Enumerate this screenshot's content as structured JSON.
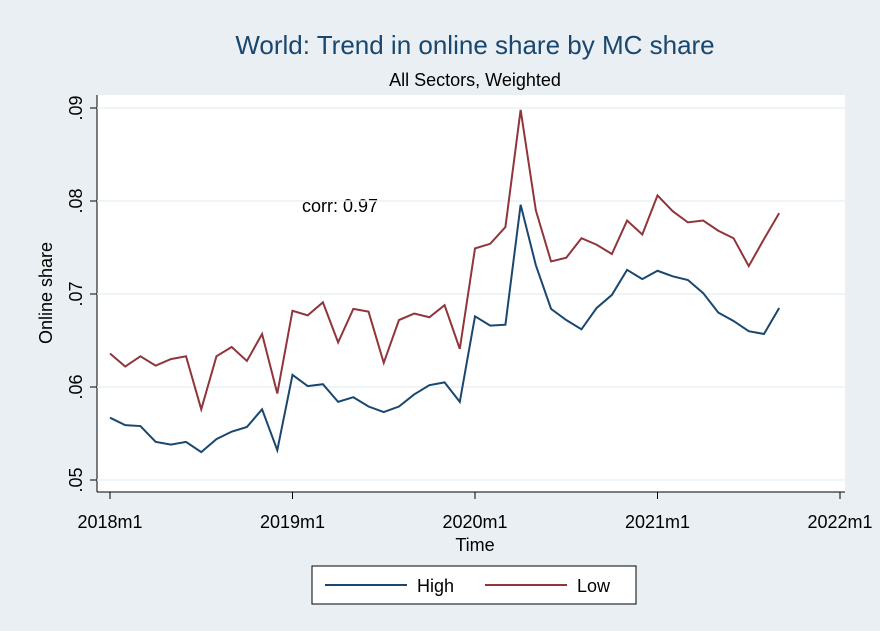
{
  "chart_data": {
    "type": "line",
    "title": "World: Trend in online share by MC share",
    "subtitle": "All Sectors, Weighted",
    "x_label": "Time",
    "y_label": "Online share",
    "annotation": "corr: 0.97",
    "x": [
      696,
      697,
      698,
      699,
      700,
      701,
      702,
      703,
      704,
      705,
      706,
      707,
      708,
      709,
      710,
      711,
      712,
      713,
      714,
      715,
      716,
      717,
      718,
      719,
      720,
      721,
      722,
      723,
      724,
      725,
      726,
      727,
      728,
      729,
      730,
      731,
      732,
      733,
      734,
      735,
      736,
      737,
      738,
      739,
      740
    ],
    "series": [
      {
        "name": "High",
        "color": "#1a476f",
        "values": [
          0.0567,
          0.0559,
          0.0558,
          0.0541,
          0.0538,
          0.0541,
          0.053,
          0.0544,
          0.0552,
          0.0557,
          0.0576,
          0.0532,
          0.0613,
          0.0601,
          0.0603,
          0.0584,
          0.0589,
          0.0579,
          0.0573,
          0.0579,
          0.0592,
          0.0602,
          0.0605,
          0.0584,
          0.0676,
          0.0666,
          0.0667,
          0.0796,
          0.0731,
          0.0684,
          0.0672,
          0.0662,
          0.0685,
          0.0699,
          0.0726,
          0.0716,
          0.0725,
          0.0719,
          0.0715,
          0.0701,
          0.068,
          0.0671,
          0.066,
          0.0657,
          0.0685
        ]
      },
      {
        "name": "Low",
        "color": "#90353b",
        "values": [
          0.0636,
          0.0622,
          0.0633,
          0.0623,
          0.063,
          0.0633,
          0.0576,
          0.0633,
          0.0643,
          0.0628,
          0.0657,
          0.0593,
          0.0682,
          0.0677,
          0.0691,
          0.0648,
          0.0684,
          0.0681,
          0.0626,
          0.0672,
          0.0679,
          0.0675,
          0.0688,
          0.0641,
          0.0749,
          0.0754,
          0.0772,
          0.0898,
          0.079,
          0.0735,
          0.0739,
          0.076,
          0.0753,
          0.0743,
          0.0779,
          0.0764,
          0.0806,
          0.0789,
          0.0777,
          0.0779,
          0.0768,
          0.076,
          0.073,
          0.0759,
          0.0787
        ]
      }
    ],
    "xlim": [
      696,
      744
    ],
    "xticks": [
      {
        "value": 696,
        "label": "2018m1"
      },
      {
        "value": 708,
        "label": "2019m1"
      },
      {
        "value": 720,
        "label": "2020m1"
      },
      {
        "value": 732,
        "label": "2021m1"
      },
      {
        "value": 744,
        "label": "2022m1"
      }
    ],
    "ylim": [
      0.05,
      0.09
    ],
    "yticks": [
      {
        "value": 0.05,
        "label": ".05"
      },
      {
        "value": 0.06,
        "label": ".06"
      },
      {
        "value": 0.07,
        "label": ".07"
      },
      {
        "value": 0.08,
        "label": ".08"
      },
      {
        "value": 0.09,
        "label": ".09"
      }
    ],
    "grid": true
  }
}
